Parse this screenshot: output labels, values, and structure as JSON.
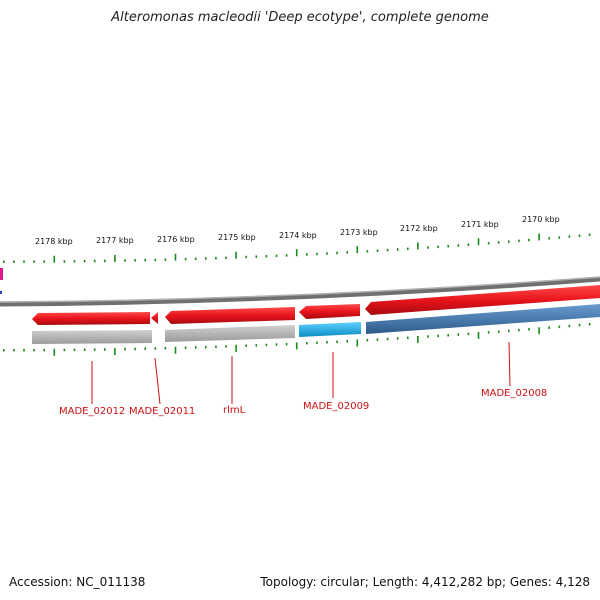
{
  "title": "Alteromonas macleodii 'Deep ecotype', complete genome",
  "scale": {
    "labels": [
      "2178 kbp",
      "2177 kbp",
      "2176 kbp",
      "2175 kbp",
      "2174 kbp",
      "2173 kbp",
      "2172 kbp",
      "2171 kbp",
      "2170 kbp"
    ]
  },
  "genes": [
    {
      "name": "MADE_02012",
      "strand": "reverse",
      "color": "#e8141b"
    },
    {
      "name": "MADE_02011",
      "strand": "reverse",
      "color": "#e8141b"
    },
    {
      "name": "rlmL",
      "strand": "reverse",
      "color": "#e8141b"
    },
    {
      "name": "MADE_02009",
      "strand": "reverse",
      "color": "#e8141b"
    },
    {
      "name": "MADE_02008",
      "strand": "reverse",
      "color": "#e8141b"
    }
  ],
  "feature_colors": {
    "cds": "#e8141b",
    "gene_grey": "#b8b8b8",
    "blue_light": "#1ab0e8",
    "blue_dark": "#3a6ea5",
    "backbone": "#8a8a8a",
    "ticks": "#1a8a1a"
  },
  "footer": {
    "accession": "Accession: NC_011138",
    "stats": "Topology: circular; Length: 4,412,282 bp; Genes: 4,128"
  }
}
